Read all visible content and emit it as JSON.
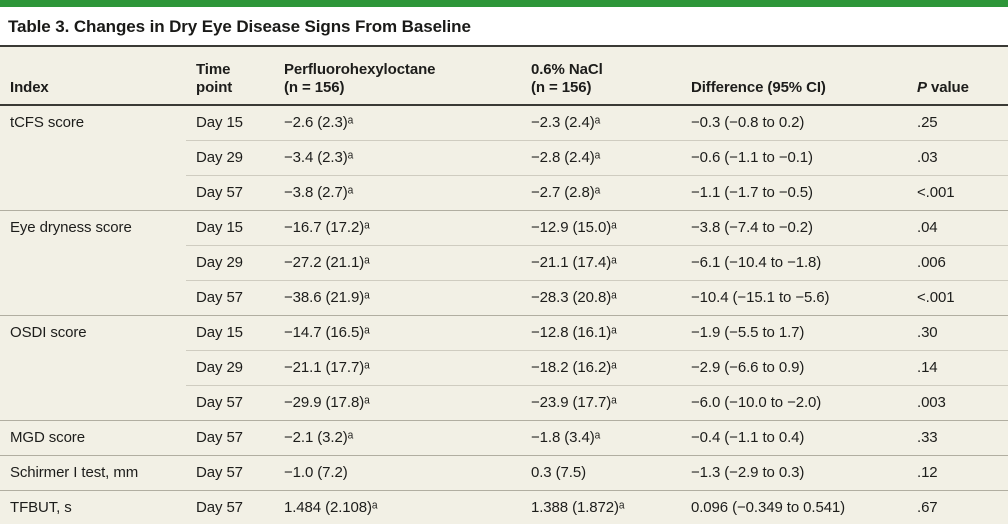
{
  "colors": {
    "accent_green": "#2d9639",
    "table_background": "#f2f0e5",
    "rule_dark": "#3a3a35",
    "rule_light": "#cfccc0",
    "rule_group": "#b1aea1",
    "text": "#1d1d1b"
  },
  "title": "Table 3. Changes in Dry Eye Disease Signs From Baseline",
  "table": {
    "columns": [
      {
        "lines": [
          "Index"
        ]
      },
      {
        "lines": [
          "Time",
          "point"
        ]
      },
      {
        "lines": [
          "Perfluorohexyloctane",
          "(n = 156)"
        ]
      },
      {
        "lines": [
          "0.6% NaCl",
          "(n = 156)"
        ]
      },
      {
        "lines": [
          "Difference (95% CI)"
        ]
      },
      {
        "lines": [
          "P value"
        ],
        "italic_first_letter": true
      }
    ],
    "groups": [
      {
        "index": "tCFS score",
        "rows": [
          {
            "time": "Day 15",
            "pfho": "−2.6 (2.3)ᵃ",
            "nacl": "−2.3 (2.4)ᵃ",
            "diff": "−0.3 (−0.8 to 0.2)",
            "p": ".25"
          },
          {
            "time": "Day 29",
            "pfho": "−3.4 (2.3)ᵃ",
            "nacl": "−2.8 (2.4)ᵃ",
            "diff": "−0.6 (−1.1 to −0.1)",
            "p": ".03"
          },
          {
            "time": "Day 57",
            "pfho": "−3.8 (2.7)ᵃ",
            "nacl": "−2.7 (2.8)ᵃ",
            "diff": "−1.1 (−1.7 to −0.5)",
            "p": "<.001"
          }
        ]
      },
      {
        "index": "Eye dryness score",
        "rows": [
          {
            "time": "Day 15",
            "pfho": "−16.7 (17.2)ᵃ",
            "nacl": "−12.9 (15.0)ᵃ",
            "diff": "−3.8 (−7.4 to −0.2)",
            "p": ".04"
          },
          {
            "time": "Day 29",
            "pfho": "−27.2 (21.1)ᵃ",
            "nacl": "−21.1 (17.4)ᵃ",
            "diff": "−6.1 (−10.4 to −1.8)",
            "p": ".006"
          },
          {
            "time": "Day 57",
            "pfho": "−38.6 (21.9)ᵃ",
            "nacl": "−28.3 (20.8)ᵃ",
            "diff": "−10.4 (−15.1 to −5.6)",
            "p": "<.001"
          }
        ]
      },
      {
        "index": "OSDI score",
        "rows": [
          {
            "time": "Day 15",
            "pfho": "−14.7 (16.5)ᵃ",
            "nacl": "−12.8 (16.1)ᵃ",
            "diff": "−1.9 (−5.5 to 1.7)",
            "p": ".30"
          },
          {
            "time": "Day 29",
            "pfho": "−21.1 (17.7)ᵃ",
            "nacl": "−18.2 (16.2)ᵃ",
            "diff": "−2.9 (−6.6 to 0.9)",
            "p": ".14"
          },
          {
            "time": "Day 57",
            "pfho": "−29.9 (17.8)ᵃ",
            "nacl": "−23.9 (17.7)ᵃ",
            "diff": "−6.0 (−10.0 to −2.0)",
            "p": ".003"
          }
        ]
      },
      {
        "index": "MGD score",
        "rows": [
          {
            "time": "Day 57",
            "pfho": "−2.1 (3.2)ᵃ",
            "nacl": "−1.8 (3.4)ᵃ",
            "diff": "−0.4 (−1.1 to 0.4)",
            "p": ".33"
          }
        ]
      },
      {
        "index": "Schirmer I test, mm",
        "rows": [
          {
            "time": "Day 57",
            "pfho": "−1.0 (7.2)",
            "nacl": "0.3 (7.5)",
            "diff": "−1.3 (−2.9 to 0.3)",
            "p": ".12"
          }
        ]
      },
      {
        "index": "TFBUT, s",
        "rows": [
          {
            "time": "Day 57",
            "pfho": "1.484 (2.108)ᵃ",
            "nacl": "1.388 (1.872)ᵃ",
            "diff": "0.096 (−0.349 to 0.541)",
            "p": ".67"
          }
        ]
      }
    ]
  }
}
